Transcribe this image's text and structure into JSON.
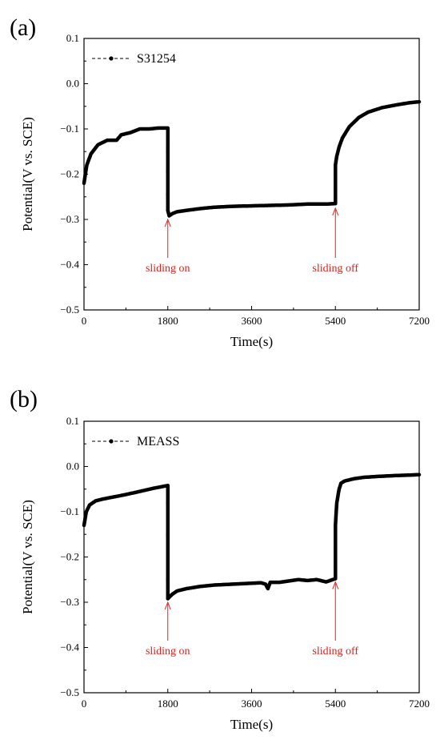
{
  "chart_data": [
    {
      "type": "line",
      "panel_label": "(a)",
      "xlabel": "Time(s)",
      "ylabel": "Potential(V vs. SCE)",
      "xlim": [
        0,
        7200
      ],
      "ylim": [
        -0.5,
        0.1
      ],
      "xticks": [
        0,
        1800,
        3600,
        5400,
        7200
      ],
      "yticks": [
        0.1,
        0.0,
        -0.1,
        -0.2,
        -0.3,
        -0.4,
        -0.5
      ],
      "xtick_labels": [
        "0",
        "1800",
        "3600",
        "5400",
        "7200"
      ],
      "ytick_labels": [
        "0.1",
        "0.0",
        "−0.1",
        "−0.2",
        "−0.3",
        "−0.4",
        "−0.5"
      ],
      "grid": false,
      "legend_position": "top-left",
      "series": [
        {
          "name": "S31254",
          "color": "#000000",
          "x": [
            0,
            60,
            150,
            300,
            500,
            700,
            800,
            1000,
            1200,
            1400,
            1600,
            1800,
            1800,
            1800,
            1800,
            1800,
            1830,
            1900,
            2000,
            2200,
            2500,
            2800,
            3200,
            3600,
            4000,
            4400,
            4800,
            5000,
            5200,
            5400,
            5400,
            5400,
            5400,
            5430,
            5480,
            5550,
            5700,
            5900,
            6100,
            6400,
            6700,
            7000,
            7200
          ],
          "y": [
            -0.22,
            -0.18,
            -0.155,
            -0.135,
            -0.125,
            -0.125,
            -0.113,
            -0.108,
            -0.1,
            -0.1,
            -0.098,
            -0.098,
            -0.15,
            -0.195,
            -0.245,
            -0.28,
            -0.292,
            -0.287,
            -0.283,
            -0.28,
            -0.276,
            -0.273,
            -0.271,
            -0.27,
            -0.269,
            -0.268,
            -0.266,
            -0.266,
            -0.266,
            -0.265,
            -0.23,
            -0.2,
            -0.18,
            -0.16,
            -0.14,
            -0.12,
            -0.095,
            -0.075,
            -0.063,
            -0.053,
            -0.047,
            -0.042,
            -0.04
          ]
        }
      ],
      "annotations": [
        {
          "text": "sliding on",
          "x": 1800,
          "y_from": -0.385,
          "y_to": -0.3
        },
        {
          "text": "sliding off",
          "x": 5400,
          "y_from": -0.385,
          "y_to": -0.275
        }
      ]
    },
    {
      "type": "line",
      "panel_label": "(b)",
      "xlabel": "Time(s)",
      "ylabel": "Potential(V vs. SCE)",
      "xlim": [
        0,
        7200
      ],
      "ylim": [
        -0.5,
        0.1
      ],
      "xticks": [
        0,
        1800,
        3600,
        5400,
        7200
      ],
      "yticks": [
        0.1,
        0.0,
        -0.1,
        -0.2,
        -0.3,
        -0.4,
        -0.5
      ],
      "xtick_labels": [
        "0",
        "1800",
        "3600",
        "5400",
        "7200"
      ],
      "ytick_labels": [
        "0.1",
        "0.0",
        "−0.1",
        "−0.2",
        "−0.3",
        "−0.4",
        "−0.5"
      ],
      "grid": false,
      "legend_position": "top-left",
      "series": [
        {
          "name": "MEASS",
          "color": "#000000",
          "x": [
            0,
            50,
            120,
            250,
            400,
            600,
            900,
            1200,
            1500,
            1700,
            1800,
            1800,
            1800,
            1800,
            1800,
            1820,
            1900,
            2000,
            2200,
            2500,
            2800,
            3200,
            3600,
            3800,
            3900,
            3950,
            4000,
            4200,
            4600,
            4800,
            5000,
            5200,
            5400,
            5400,
            5400,
            5400,
            5430,
            5480,
            5520,
            5600,
            5800,
            6000,
            6300,
            6700,
            7000,
            7200
          ],
          "y": [
            -0.13,
            -0.1,
            -0.085,
            -0.076,
            -0.072,
            -0.068,
            -0.062,
            -0.055,
            -0.048,
            -0.044,
            -0.042,
            -0.08,
            -0.15,
            -0.25,
            -0.292,
            -0.29,
            -0.282,
            -0.275,
            -0.27,
            -0.265,
            -0.262,
            -0.26,
            -0.258,
            -0.257,
            -0.26,
            -0.27,
            -0.256,
            -0.256,
            -0.25,
            -0.252,
            -0.25,
            -0.255,
            -0.248,
            -0.22,
            -0.18,
            -0.13,
            -0.08,
            -0.05,
            -0.037,
            -0.032,
            -0.027,
            -0.024,
            -0.022,
            -0.02,
            -0.019,
            -0.018
          ]
        }
      ],
      "annotations": [
        {
          "text": "sliding on",
          "x": 1800,
          "y_from": -0.385,
          "y_to": -0.3
        },
        {
          "text": "sliding off",
          "x": 5400,
          "y_from": -0.385,
          "y_to": -0.255
        }
      ]
    }
  ]
}
